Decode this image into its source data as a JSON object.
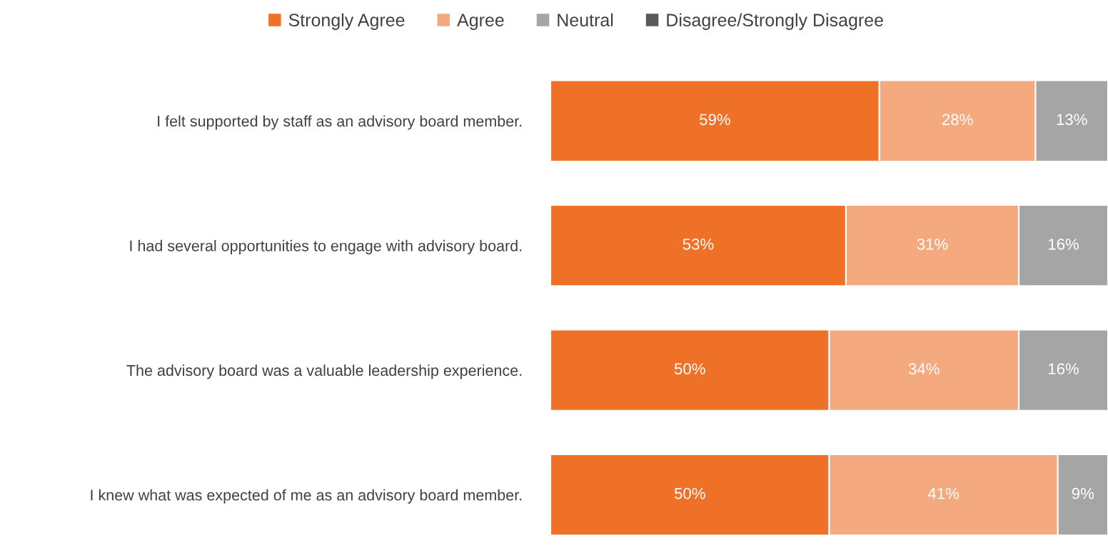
{
  "chart_data": {
    "type": "bar",
    "orientation": "horizontal",
    "stacked": true,
    "categories": [
      "I felt supported by staff as an advisory board member.",
      "I had several opportunities to engage with advisory board.",
      "The advisory board was a valuable leadership experience.",
      "I knew what was expected of me as an advisory board member."
    ],
    "series": [
      {
        "name": "Strongly Agree",
        "color": "#ee7127",
        "values": [
          59,
          53,
          50,
          50
        ],
        "value_labels": [
          "59%",
          "53%",
          "50%",
          "50%"
        ]
      },
      {
        "name": "Agree",
        "color": "#f4a97e",
        "values": [
          28,
          31,
          34,
          41
        ],
        "value_labels": [
          "28%",
          "31%",
          "34%",
          "41%"
        ]
      },
      {
        "name": "Neutral",
        "color": "#a5a5a5",
        "values": [
          13,
          16,
          16,
          9
        ],
        "value_labels": [
          "13%",
          "16%",
          "16%",
          "9%"
        ]
      },
      {
        "name": "Disagree/Strongly Disagree",
        "color": "#595959",
        "values": [
          null,
          null,
          null,
          null
        ],
        "value_labels": [
          null,
          null,
          null,
          null
        ]
      }
    ],
    "xlim": [
      0,
      100
    ],
    "tick_labels": "y",
    "grid": false,
    "legend": "top"
  }
}
